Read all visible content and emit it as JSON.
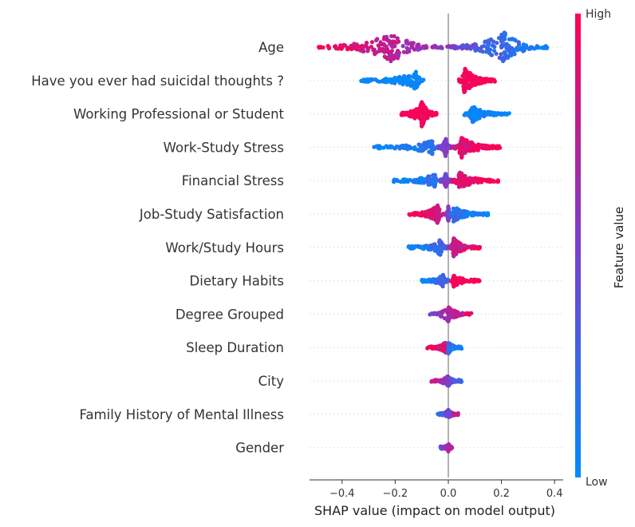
{
  "chart_data": {
    "type": "scatter",
    "subtype": "shap-beeswarm",
    "xlabel": "SHAP value (impact on model output)",
    "xlim": [
      -0.52,
      0.4
    ],
    "xticks": [
      -0.4,
      -0.2,
      0.0,
      0.2,
      0.4
    ],
    "xtick_labels": [
      "−0.4",
      "−0.2",
      "0.0",
      "0.2",
      "0.4"
    ],
    "grid": false,
    "colorbar": {
      "label": "Feature value",
      "high_label": "High",
      "low_label": "Low",
      "colors": [
        "#008bfb",
        "#7a3fd0",
        "#ff0052"
      ]
    },
    "features": [
      {
        "name": "Age",
        "clusters": [
          {
            "min": -0.5,
            "max": -0.02,
            "peak": -0.21,
            "density": 1.0,
            "value_at_min": 1.0,
            "value_at_max": 0.55
          },
          {
            "min": -0.01,
            "max": 0.38,
            "peak": 0.21,
            "density": 1.0,
            "value_at_min": 0.5,
            "value_at_max": 0.0
          }
        ]
      },
      {
        "name": "Have you ever had suicidal thoughts ?",
        "clusters": [
          {
            "min": -0.33,
            "max": -0.09,
            "peak": -0.12,
            "density": 0.6,
            "value_at_min": 0.0,
            "value_at_max": 0.0
          },
          {
            "min": 0.04,
            "max": 0.18,
            "peak": 0.06,
            "density": 0.85,
            "value_at_min": 1.0,
            "value_at_max": 1.0
          }
        ]
      },
      {
        "name": "Working Professional or Student",
        "clusters": [
          {
            "min": -0.18,
            "max": -0.04,
            "peak": -0.1,
            "density": 0.85,
            "value_at_min": 1.0,
            "value_at_max": 1.0
          },
          {
            "min": 0.06,
            "max": 0.23,
            "peak": 0.09,
            "density": 0.55,
            "value_at_min": 0.0,
            "value_at_max": 0.0
          }
        ]
      },
      {
        "name": "Work-Study Stress",
        "clusters": [
          {
            "min": -0.29,
            "max": -0.04,
            "peak": -0.06,
            "density": 0.45,
            "value_at_min": 0.0,
            "value_at_max": 0.2
          },
          {
            "min": -0.04,
            "max": 0.01,
            "peak": -0.01,
            "density": 0.6,
            "value_at_min": 0.5,
            "value_at_max": 0.5
          },
          {
            "min": 0.01,
            "max": 0.2,
            "peak": 0.05,
            "density": 0.7,
            "value_at_min": 0.85,
            "value_at_max": 1.0
          }
        ]
      },
      {
        "name": "Financial Stress",
        "clusters": [
          {
            "min": -0.21,
            "max": -0.04,
            "peak": -0.05,
            "density": 0.45,
            "value_at_min": 0.0,
            "value_at_max": 0.2
          },
          {
            "min": -0.03,
            "max": 0.01,
            "peak": -0.01,
            "density": 0.5,
            "value_at_min": 0.5,
            "value_at_max": 0.5
          },
          {
            "min": 0.01,
            "max": 0.19,
            "peak": 0.04,
            "density": 0.6,
            "value_at_min": 0.85,
            "value_at_max": 1.0
          }
        ]
      },
      {
        "name": "Job-Study Satisfaction",
        "clusters": [
          {
            "min": -0.15,
            "max": -0.01,
            "peak": -0.04,
            "density": 0.6,
            "value_at_min": 1.0,
            "value_at_max": 0.8
          },
          {
            "min": -0.01,
            "max": 0.01,
            "peak": 0.0,
            "density": 0.5,
            "value_at_min": 0.5,
            "value_at_max": 0.5
          },
          {
            "min": 0.0,
            "max": 0.15,
            "peak": 0.02,
            "density": 0.5,
            "value_at_min": 0.2,
            "value_at_max": 0.0
          }
        ]
      },
      {
        "name": "Work/Study Hours",
        "clusters": [
          {
            "min": -0.15,
            "max": 0.0,
            "peak": -0.03,
            "density": 0.5,
            "value_at_min": 0.0,
            "value_at_max": 0.35
          },
          {
            "min": 0.0,
            "max": 0.12,
            "peak": 0.02,
            "density": 0.6,
            "value_at_min": 0.7,
            "value_at_max": 1.0
          }
        ]
      },
      {
        "name": "Dietary Habits",
        "clusters": [
          {
            "min": -0.1,
            "max": 0.0,
            "peak": -0.02,
            "density": 0.4,
            "value_at_min": 0.0,
            "value_at_max": 0.3
          },
          {
            "min": 0.01,
            "max": 0.12,
            "peak": 0.02,
            "density": 0.4,
            "value_at_min": 1.0,
            "value_at_max": 1.0
          }
        ]
      },
      {
        "name": "Degree Grouped",
        "clusters": [
          {
            "min": -0.07,
            "max": 0.09,
            "peak": 0.0,
            "density": 0.5,
            "value_at_min": 0.5,
            "value_at_max": 0.9
          }
        ]
      },
      {
        "name": "Sleep Duration",
        "clusters": [
          {
            "min": -0.08,
            "max": 0.0,
            "peak": -0.01,
            "density": 0.35,
            "value_at_min": 1.0,
            "value_at_max": 0.8
          },
          {
            "min": 0.0,
            "max": 0.05,
            "peak": 0.0,
            "density": 0.4,
            "value_at_min": 0.2,
            "value_at_max": 0.0
          }
        ]
      },
      {
        "name": "City",
        "clusters": [
          {
            "min": -0.07,
            "max": 0.05,
            "peak": 0.0,
            "density": 0.35,
            "value_at_min": 0.9,
            "value_at_max": 0.2
          }
        ]
      },
      {
        "name": "Family History of Mental Illness",
        "clusters": [
          {
            "min": -0.04,
            "max": 0.04,
            "peak": 0.0,
            "density": 0.3,
            "value_at_min": 0.1,
            "value_at_max": 0.9
          }
        ]
      },
      {
        "name": "Gender",
        "clusters": [
          {
            "min": -0.03,
            "max": 0.02,
            "peak": 0.0,
            "density": 0.3,
            "value_at_min": 0.4,
            "value_at_max": 0.8
          }
        ]
      }
    ]
  }
}
